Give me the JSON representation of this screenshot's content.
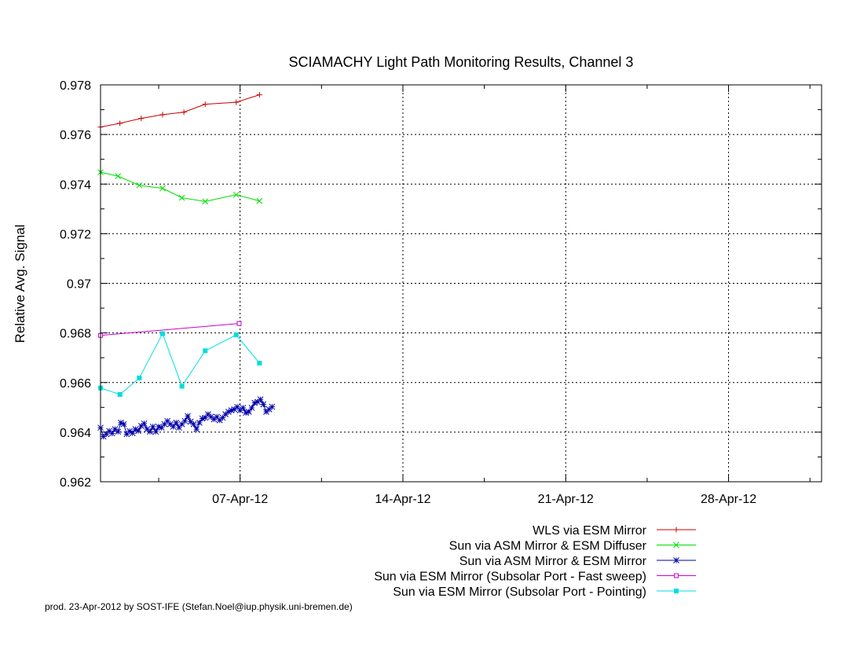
{
  "chart_data": {
    "type": "line",
    "title": "SCIAMACHY Light Path Monitoring Results, Channel 3",
    "xlabel": "",
    "ylabel": "Relative Avg. Signal",
    "x_type": "date",
    "xlim": [
      "2012-04-01",
      "2012-05-02"
    ],
    "ylim": [
      0.962,
      0.978
    ],
    "x_ticks": [
      "2012-04-07",
      "2012-04-14",
      "2012-04-21",
      "2012-04-28"
    ],
    "x_tick_labels": [
      "07-Apr-12",
      "14-Apr-12",
      "21-Apr-12",
      "28-Apr-12"
    ],
    "y_ticks": [
      0.962,
      0.964,
      0.966,
      0.968,
      0.97,
      0.972,
      0.974,
      0.976,
      0.978
    ],
    "y_tick_labels": [
      "0.962",
      "0.964",
      "0.966",
      "0.968",
      "0.97",
      "0.972",
      "0.974",
      "0.976",
      "0.978"
    ],
    "grid": true,
    "legend_position": "bottom-right-outside",
    "series": [
      {
        "name": "WLS via ESM Mirror",
        "color": "#cc0000",
        "marker": "plus",
        "points": [
          [
            "2012-04-01 00:00",
            0.9763
          ],
          [
            "2012-04-01 20:00",
            0.97645
          ],
          [
            "2012-04-02 18:00",
            0.97665
          ],
          [
            "2012-04-03 16:00",
            0.9768
          ],
          [
            "2012-04-04 14:00",
            0.9769
          ],
          [
            "2012-04-05 12:00",
            0.97722
          ],
          [
            "2012-04-06 20:00",
            0.9773
          ],
          [
            "2012-04-07 20:00",
            0.9776
          ]
        ]
      },
      {
        "name": "Sun via ASM Mirror & ESM Diffuser",
        "color": "#00dd00",
        "marker": "cross",
        "points": [
          [
            "2012-04-01 00:00",
            0.97448
          ],
          [
            "2012-04-01 18:00",
            0.97432
          ],
          [
            "2012-04-02 16:00",
            0.97395
          ],
          [
            "2012-04-03 16:00",
            0.97383
          ],
          [
            "2012-04-04 12:00",
            0.97345
          ],
          [
            "2012-04-05 12:00",
            0.9733
          ],
          [
            "2012-04-06 20:00",
            0.97357
          ],
          [
            "2012-04-07 20:00",
            0.97332
          ]
        ]
      },
      {
        "name": "Sun via ASM Mirror & ESM Mirror",
        "color": "#0000aa",
        "marker": "star",
        "points": [
          [
            "2012-04-01 00:00",
            0.96418
          ],
          [
            "2012-04-01 03:00",
            0.96382
          ],
          [
            "2012-04-01 06:00",
            0.96392
          ],
          [
            "2012-04-01 09:00",
            0.96405
          ],
          [
            "2012-04-01 12:00",
            0.96395
          ],
          [
            "2012-04-01 15:00",
            0.96412
          ],
          [
            "2012-04-01 18:00",
            0.96402
          ],
          [
            "2012-04-01 21:00",
            0.96438
          ],
          [
            "2012-04-02 00:00",
            0.96432
          ],
          [
            "2012-04-02 03:00",
            0.96392
          ],
          [
            "2012-04-02 06:00",
            0.96404
          ],
          [
            "2012-04-02 09:00",
            0.96396
          ],
          [
            "2012-04-02 12:00",
            0.96412
          ],
          [
            "2012-04-02 15:00",
            0.96405
          ],
          [
            "2012-04-02 18:00",
            0.96425
          ],
          [
            "2012-04-02 21:00",
            0.96435
          ],
          [
            "2012-04-03 00:00",
            0.96412
          ],
          [
            "2012-04-03 03:00",
            0.96402
          ],
          [
            "2012-04-03 06:00",
            0.96422
          ],
          [
            "2012-04-03 09:00",
            0.96402
          ],
          [
            "2012-04-03 12:00",
            0.96422
          ],
          [
            "2012-04-03 15:00",
            0.96418
          ],
          [
            "2012-04-03 18:00",
            0.96432
          ],
          [
            "2012-04-03 21:00",
            0.96445
          ],
          [
            "2012-04-04 00:00",
            0.96432
          ],
          [
            "2012-04-04 03:00",
            0.96422
          ],
          [
            "2012-04-04 06:00",
            0.96438
          ],
          [
            "2012-04-04 09:00",
            0.96418
          ],
          [
            "2012-04-04 12:00",
            0.96432
          ],
          [
            "2012-04-04 15:00",
            0.96445
          ],
          [
            "2012-04-04 18:00",
            0.96465
          ],
          [
            "2012-04-04 21:00",
            0.96442
          ],
          [
            "2012-04-05 00:00",
            0.96432
          ],
          [
            "2012-04-05 03:00",
            0.96412
          ],
          [
            "2012-04-05 06:00",
            0.96438
          ],
          [
            "2012-04-05 09:00",
            0.96455
          ],
          [
            "2012-04-05 12:00",
            0.96458
          ],
          [
            "2012-04-05 15:00",
            0.96472
          ],
          [
            "2012-04-05 18:00",
            0.96462
          ],
          [
            "2012-04-05 21:00",
            0.96452
          ],
          [
            "2012-04-06 00:00",
            0.96462
          ],
          [
            "2012-04-06 03:00",
            0.96448
          ],
          [
            "2012-04-06 06:00",
            0.96458
          ],
          [
            "2012-04-06 09:00",
            0.96472
          ],
          [
            "2012-04-06 12:00",
            0.96482
          ],
          [
            "2012-04-06 15:00",
            0.96488
          ],
          [
            "2012-04-06 18:00",
            0.96492
          ],
          [
            "2012-04-06 21:00",
            0.96502
          ],
          [
            "2012-04-07 00:00",
            0.96488
          ],
          [
            "2012-04-07 03:00",
            0.96498
          ],
          [
            "2012-04-07 06:00",
            0.96478
          ],
          [
            "2012-04-07 09:00",
            0.96482
          ],
          [
            "2012-04-07 12:00",
            0.96498
          ],
          [
            "2012-04-07 15:00",
            0.96518
          ],
          [
            "2012-04-07 18:00",
            0.96522
          ],
          [
            "2012-04-07 21:00",
            0.96532
          ],
          [
            "2012-04-08 00:00",
            0.96512
          ],
          [
            "2012-04-08 03:00",
            0.96482
          ],
          [
            "2012-04-08 06:00",
            0.96492
          ],
          [
            "2012-04-08 09:00",
            0.96502
          ]
        ]
      },
      {
        "name": "Sun via ESM Mirror (Subsolar Port - Fast sweep)",
        "color": "#cc00cc",
        "marker": "square",
        "points": [
          [
            "2012-04-01 00:00",
            0.9679
          ],
          [
            "2012-04-06 23:00",
            0.96838
          ]
        ]
      },
      {
        "name": "Sun via ESM Mirror (Subsolar Port - Pointing)",
        "color": "#00dddd",
        "marker": "filled-square",
        "points": [
          [
            "2012-04-01 00:00",
            0.96578
          ],
          [
            "2012-04-01 20:00",
            0.96552
          ],
          [
            "2012-04-02 16:00",
            0.96618
          ],
          [
            "2012-04-03 16:00",
            0.96797
          ],
          [
            "2012-04-04 12:00",
            0.96585
          ],
          [
            "2012-04-05 12:00",
            0.96728
          ],
          [
            "2012-04-06 20:00",
            0.96792
          ],
          [
            "2012-04-07 20:00",
            0.96678
          ]
        ]
      }
    ]
  },
  "footer": {
    "text": "prod. 23-Apr-2012 by SOST-IFE (Stefan.Noel@iup.physik.uni-bremen.de)"
  }
}
